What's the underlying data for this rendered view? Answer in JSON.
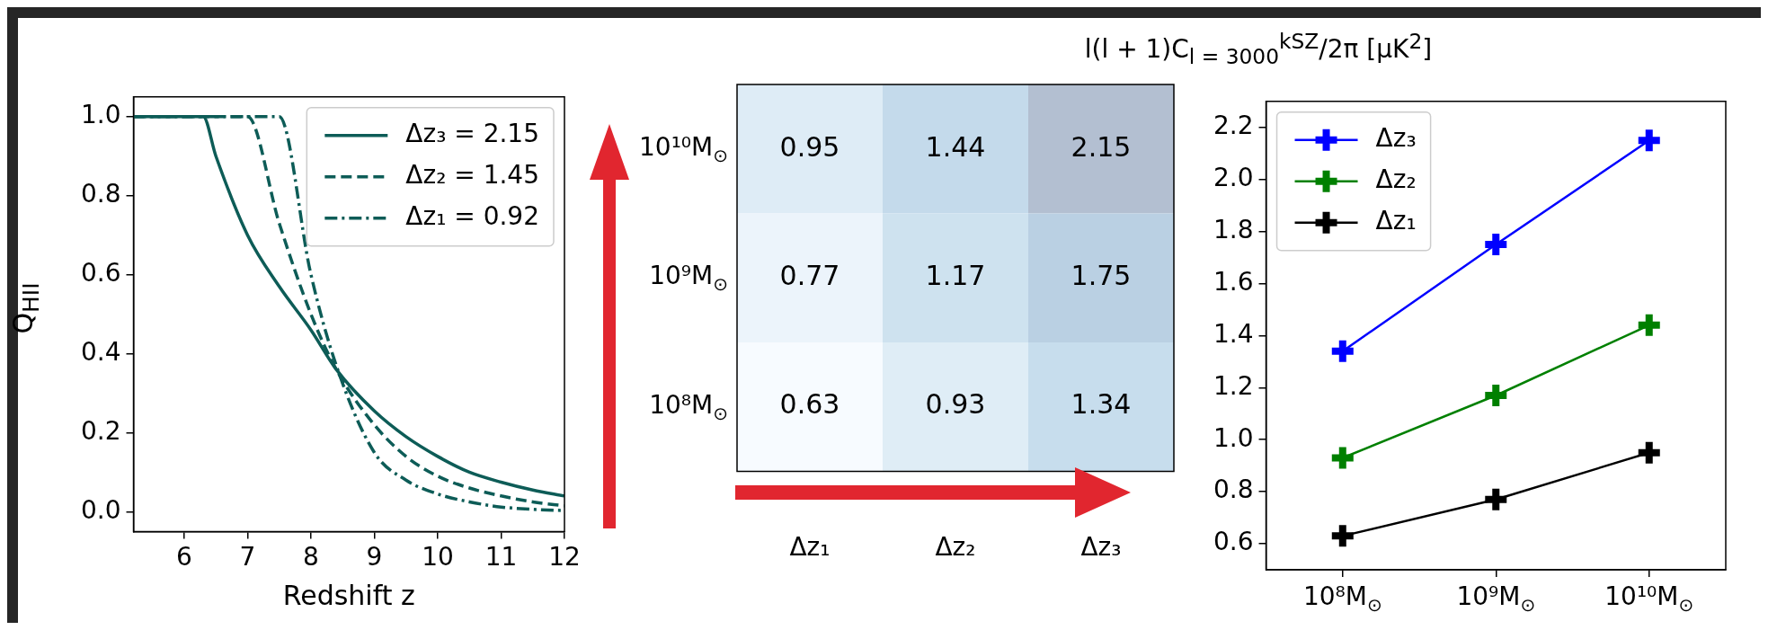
{
  "chart_data": [
    {
      "type": "line",
      "xlabel": "Redshift z",
      "ylabel": "Q$_{HII}$",
      "xlim": [
        5.2,
        12
      ],
      "xticks": [
        6,
        7,
        8,
        9,
        10,
        11,
        12
      ],
      "ylim": [
        -0.05,
        1.05
      ],
      "yticks": [
        {
          "value": 0,
          "label": "0.0"
        },
        0.2,
        0.4,
        0.6,
        0.8,
        {
          "value": 1,
          "label": "1.0"
        }
      ],
      "grid": false,
      "legend": "top right",
      "series": [
        {
          "name": "Δz₃ = 2.15",
          "color": "#0d5c57",
          "line_style": "solid",
          "x": [
            5.2,
            6.3,
            6.5,
            7,
            7.5,
            8,
            8.4,
            9,
            9.5,
            10,
            10.5,
            11,
            11.5,
            12
          ],
          "values": [
            1,
            1,
            0.9,
            0.7,
            0.57,
            0.46,
            0.36,
            0.255,
            0.19,
            0.14,
            0.1,
            0.075,
            0.055,
            0.04
          ]
        },
        {
          "name": "Δz₂ = 1.45",
          "color": "#0d5c57",
          "line_style": "dashed",
          "x": [
            5.2,
            7,
            7.5,
            8,
            8.4,
            9,
            9.5,
            10,
            10.5,
            11,
            11.5,
            12
          ],
          "values": [
            1,
            1,
            0.73,
            0.5,
            0.36,
            0.22,
            0.14,
            0.09,
            0.06,
            0.04,
            0.025,
            0.015
          ]
        },
        {
          "name": "Δz₁ = 0.92",
          "color": "#0d5c57",
          "line_style": "dashdot",
          "x": [
            5.2,
            7.5,
            8,
            8.4,
            9,
            9.5,
            10,
            10.5,
            11,
            11.5,
            12
          ],
          "values": [
            1,
            1,
            0.6,
            0.37,
            0.15,
            0.08,
            0.045,
            0.025,
            0.012,
            0.006,
            0.003
          ]
        }
      ]
    },
    {
      "type": "heatmap",
      "title": "l(l + 1)C$_{l = 3000}$$^{kSZ}$/2π [μK$^{2}$]",
      "categories": [
        "Δz₁",
        "Δz₂",
        "Δz₃"
      ],
      "y_categories": [
        "10¹⁰M$_{⊙}$",
        "10⁹M$_{⊙}$",
        "10⁸M$_{⊙}$"
      ],
      "data_labels": true,
      "cells": [
        [
          0.95,
          1.44,
          2.15
        ],
        [
          0.77,
          1.17,
          1.75
        ],
        [
          0.63,
          0.93,
          1.34
        ]
      ]
    },
    {
      "type": "line",
      "categories": [
        "10⁸M$_{⊙}$",
        "10⁹M$_{⊙}$",
        "10¹⁰M$_{⊙}$"
      ],
      "ylim": [
        0.5,
        2.3
      ],
      "yticks": [
        0.6,
        0.8,
        {
          "value": 1,
          "label": "1.0"
        },
        1.2,
        1.4,
        1.6,
        1.8,
        {
          "value": 2,
          "label": "2.0"
        },
        2.2
      ],
      "grid": false,
      "legend": "top left",
      "marker": "cross",
      "series": [
        {
          "name": "Δz₃",
          "color": "#0000ff",
          "values": [
            1.34,
            1.75,
            2.15
          ]
        },
        {
          "name": "Δz₂",
          "color": "#008000",
          "values": [
            0.93,
            1.17,
            1.44
          ]
        },
        {
          "name": "Δz₁",
          "color": "#000000",
          "values": [
            0.63,
            0.77,
            0.95
          ]
        }
      ]
    }
  ]
}
